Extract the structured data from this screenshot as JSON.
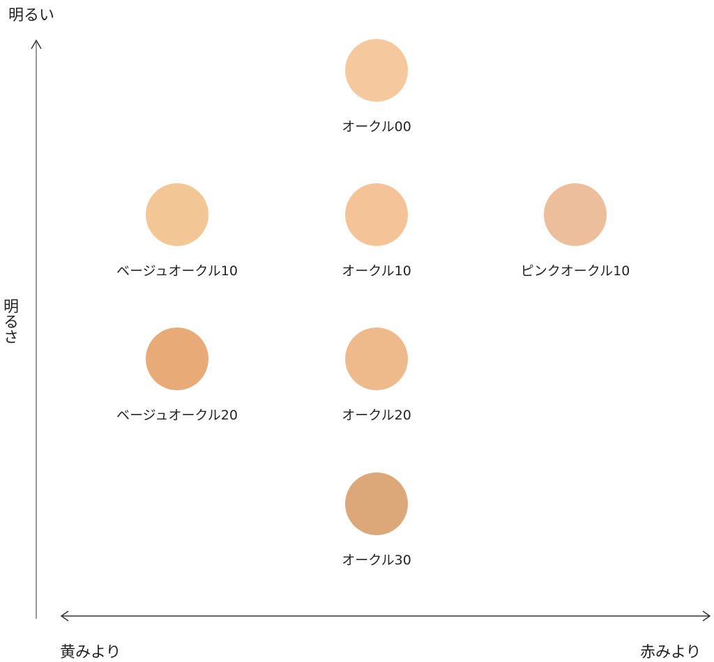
{
  "axes": {
    "y_top_label": "明るい",
    "y_label": "明るさ",
    "x_left_label": "黄みより",
    "x_right_label": "赤みより"
  },
  "shades": [
    {
      "name": "オークル00",
      "column": 2,
      "row": 1,
      "color": "#f6c89e"
    },
    {
      "name": "ベージュオークル10",
      "column": 1,
      "row": 2,
      "color": "#f3c795"
    },
    {
      "name": "オークル10",
      "column": 2,
      "row": 2,
      "color": "#f4c398"
    },
    {
      "name": "ピンクオークル10",
      "column": 3,
      "row": 2,
      "color": "#edbe9b"
    },
    {
      "name": "ベージュオークル20",
      "column": 1,
      "row": 3,
      "color": "#e8ab78"
    },
    {
      "name": "オークル20",
      "column": 2,
      "row": 3,
      "color": "#eeba8c"
    },
    {
      "name": "オークル30",
      "column": 2,
      "row": 4,
      "color": "#dca87a"
    }
  ]
}
